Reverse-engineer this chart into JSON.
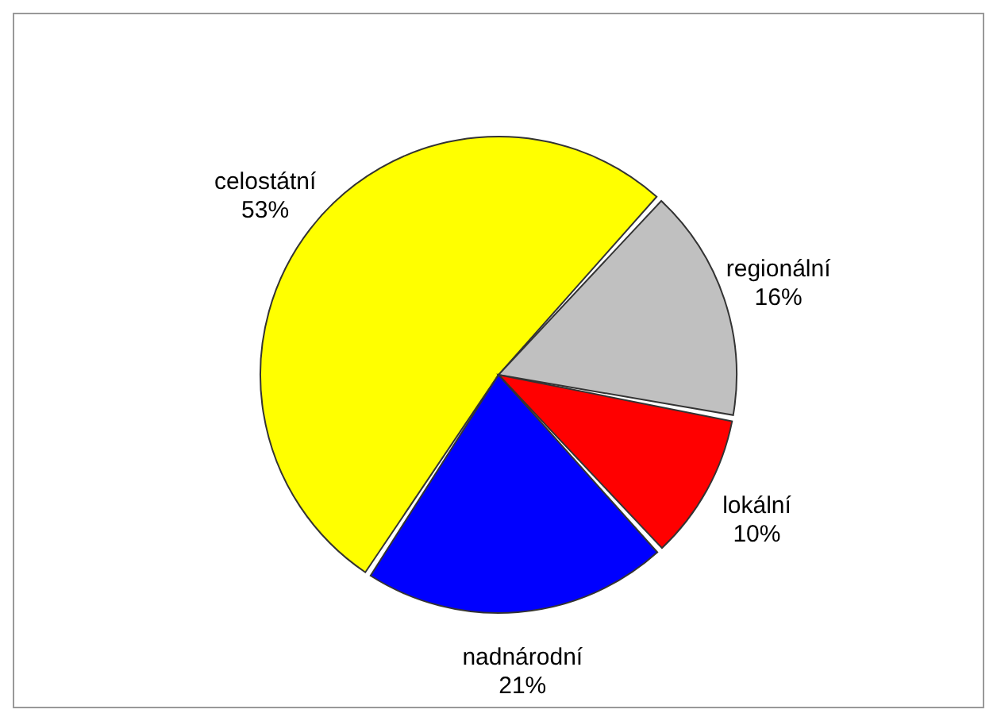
{
  "chart_data": {
    "type": "pie",
    "categories": [
      "celostátní",
      "regionální",
      "lokální",
      "nadnárodní"
    ],
    "values": [
      53,
      16,
      10,
      21
    ],
    "colors": [
      "#ffff00",
      "#c0c0c0",
      "#ff0000",
      "#0000ff"
    ],
    "value_labels": [
      "53%",
      "16%",
      "10%",
      "21%"
    ]
  }
}
